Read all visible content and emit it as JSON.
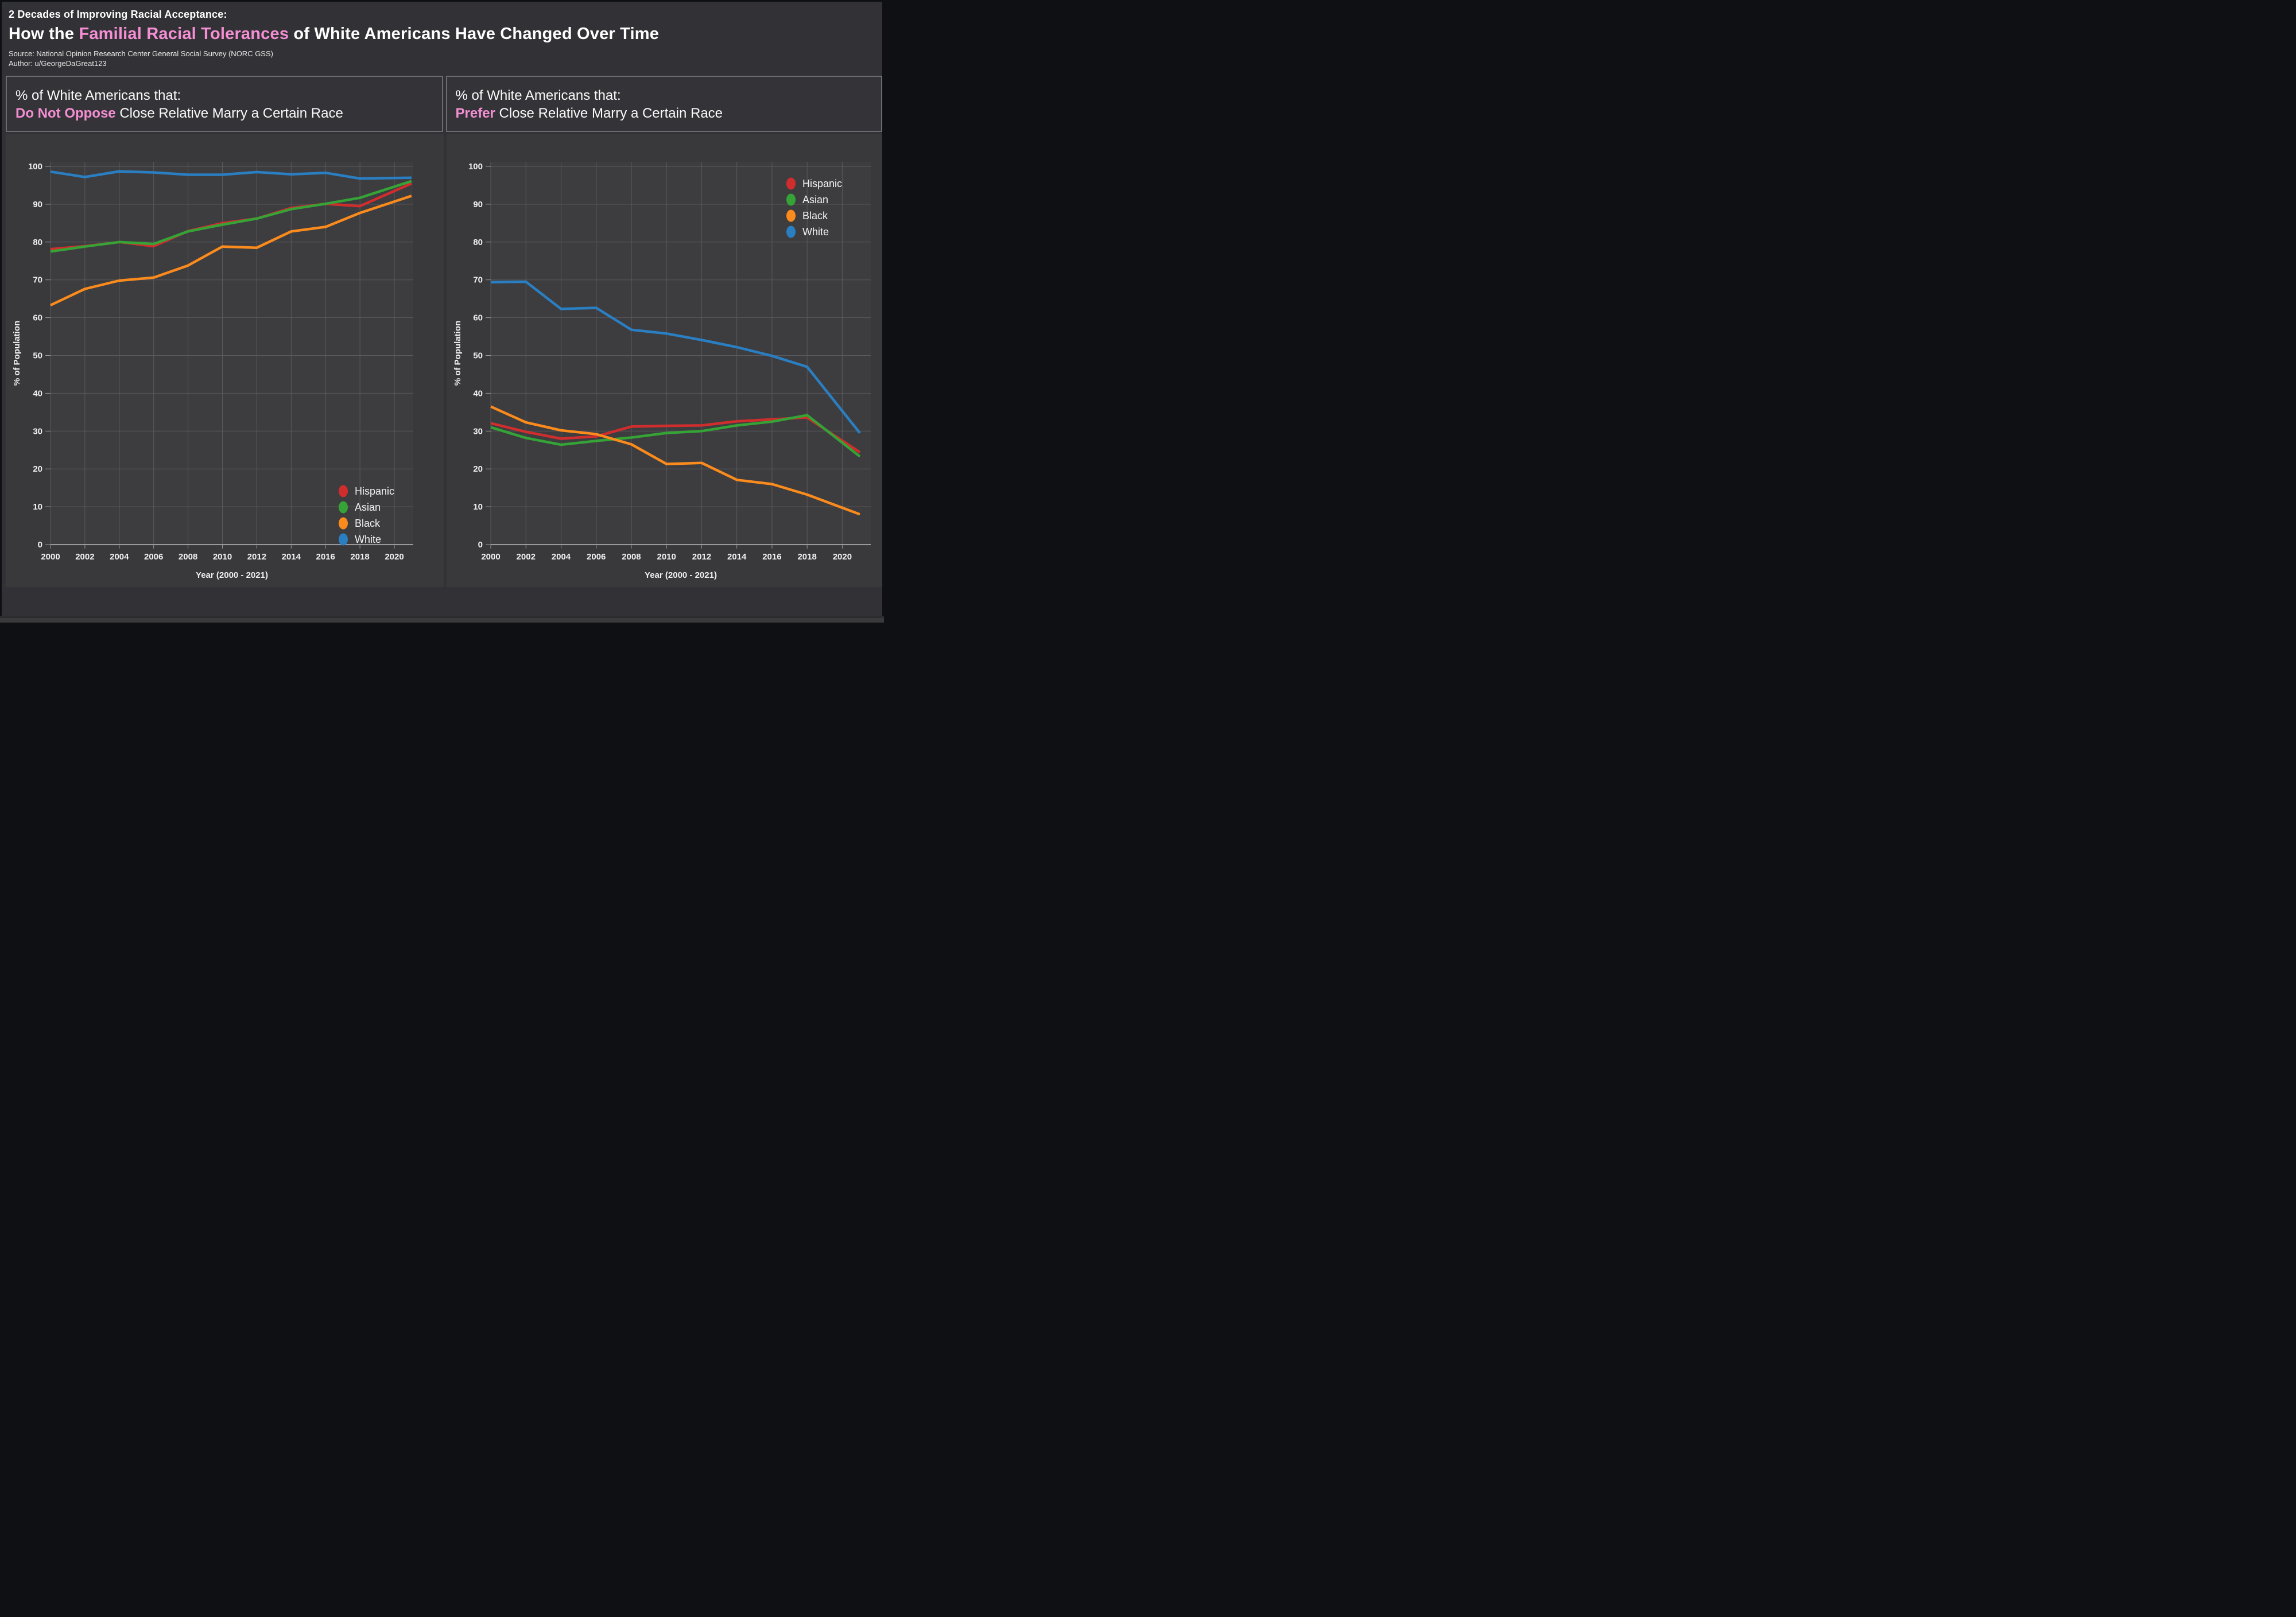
{
  "page": {
    "supertitle": "2 Decades of Improving Racial Acceptance:",
    "title_prefix": "How the ",
    "title_highlight": "Familial Racial Tolerances",
    "title_suffix": " of White Americans Have Changed Over Time",
    "source": "Source: National Opinion Research Center General Social Survey (NORC GSS)",
    "author": "Author: u/GeorgeDaGreat123"
  },
  "panels": [
    {
      "heading_line1": "% of White Americans that:",
      "heading_highlight": "Do Not Oppose",
      "heading_rest": " Close Relative Marry a Certain Race"
    },
    {
      "heading_line1": "% of White Americans that:",
      "heading_highlight": "Prefer",
      "heading_rest": " Close Relative Marry a Certain Race"
    }
  ],
  "colors": {
    "accent_pink": "#f58fd4",
    "hispanic": "#d22d2d",
    "asian": "#35a335",
    "black": "#fb8b1c",
    "white_series": "#2a7fc2",
    "page_bg": "#323236",
    "panel_bg": "#39393c",
    "plot_bg": "#3d3d40",
    "gridline": "#5a5a5e",
    "axis_line": "#98989c",
    "tick_text": "#f0f0f0",
    "legend_text": "#f2f2f2"
  },
  "chart_data": [
    {
      "type": "line",
      "title": "% of White Americans that Do Not Oppose Close Relative Marry a Certain Race",
      "x": [
        2000,
        2002,
        2004,
        2006,
        2008,
        2010,
        2012,
        2014,
        2016,
        2018,
        2021
      ],
      "x_tick_labels": [
        "2000",
        "2002",
        "2004",
        "2006",
        "2008",
        "2010",
        "2012",
        "2014",
        "2016",
        "2018",
        "2020"
      ],
      "x_tick_values": [
        2000,
        2002,
        2004,
        2006,
        2008,
        2010,
        2012,
        2014,
        2016,
        2018,
        2020
      ],
      "y_ticks": [
        0,
        10,
        20,
        30,
        40,
        50,
        60,
        70,
        80,
        90,
        100
      ],
      "xlabel": "Year (2000 - 2021)",
      "ylabel": "% of Population",
      "ylim": [
        0,
        100
      ],
      "grid": true,
      "legend_position": "bottom-right",
      "series": [
        {
          "name": "Hispanic",
          "color": "#d22d2d",
          "values": [
            78.1,
            78.9,
            80.0,
            78.9,
            82.9,
            85.0,
            86.2,
            89.0,
            90.1,
            89.5,
            95.5
          ]
        },
        {
          "name": "Asian",
          "color": "#35a335",
          "values": [
            77.5,
            78.8,
            80.0,
            79.5,
            82.8,
            84.6,
            86.2,
            88.7,
            90.1,
            91.7,
            96.1
          ]
        },
        {
          "name": "Black",
          "color": "#fb8b1c",
          "values": [
            63.3,
            67.6,
            69.8,
            70.6,
            73.8,
            78.8,
            78.5,
            82.8,
            84.0,
            87.7,
            92.2
          ]
        },
        {
          "name": "White",
          "color": "#2a7fc2",
          "values": [
            98.6,
            97.2,
            98.7,
            98.4,
            97.8,
            97.8,
            98.5,
            97.9,
            98.3,
            96.8,
            97.0
          ]
        }
      ]
    },
    {
      "type": "line",
      "title": "% of White Americans that Prefer Close Relative Marry a Certain Race",
      "x": [
        2000,
        2002,
        2004,
        2006,
        2008,
        2010,
        2012,
        2014,
        2016,
        2018,
        2021
      ],
      "x_tick_labels": [
        "2000",
        "2002",
        "2004",
        "2006",
        "2008",
        "2010",
        "2012",
        "2014",
        "2016",
        "2018",
        "2020"
      ],
      "x_tick_values": [
        2000,
        2002,
        2004,
        2006,
        2008,
        2010,
        2012,
        2014,
        2016,
        2018,
        2020
      ],
      "y_ticks": [
        0,
        10,
        20,
        30,
        40,
        50,
        60,
        70,
        80,
        90,
        100
      ],
      "xlabel": "Year (2000 - 2021)",
      "ylabel": "% of Population",
      "ylim": [
        0,
        100
      ],
      "grid": true,
      "legend_position": "top-right",
      "series": [
        {
          "name": "Hispanic",
          "color": "#d22d2d",
          "values": [
            32.1,
            29.8,
            28.0,
            28.6,
            31.2,
            31.4,
            31.5,
            32.6,
            33.1,
            33.6,
            24.4
          ]
        },
        {
          "name": "Asian",
          "color": "#35a335",
          "values": [
            31.0,
            28.2,
            26.4,
            27.4,
            28.3,
            29.5,
            30.0,
            31.5,
            32.5,
            34.2,
            23.3
          ]
        },
        {
          "name": "Black",
          "color": "#fb8b1c",
          "values": [
            36.5,
            32.3,
            30.2,
            29.2,
            26.5,
            21.3,
            21.6,
            17.1,
            16.0,
            13.2,
            8.0
          ]
        },
        {
          "name": "White",
          "color": "#2a7fc2",
          "values": [
            69.4,
            69.5,
            62.3,
            62.6,
            56.8,
            55.8,
            54.1,
            52.2,
            49.9,
            47.0,
            29.5
          ]
        }
      ]
    }
  ]
}
